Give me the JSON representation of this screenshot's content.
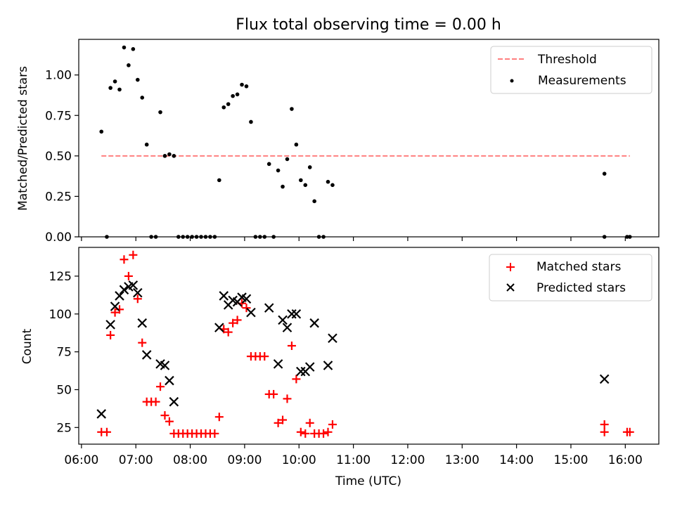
{
  "title": "Flux total observing time = 0.00 h",
  "chart_data": [
    {
      "type": "scatter",
      "ylabel": "Matched/Predicted stars",
      "ylim": [
        0,
        1.22
      ],
      "yticks": [
        0.0,
        0.25,
        0.5,
        0.75,
        1.0
      ],
      "ytick_labels": [
        "0.00",
        "0.25",
        "0.50",
        "0.75",
        "1.00"
      ],
      "legend": {
        "position": "top-right",
        "entries": [
          "Threshold",
          "Measurements"
        ]
      },
      "colors": {
        "threshold": "#ff7f7f",
        "measurements": "#000000"
      },
      "threshold": {
        "name": "Threshold",
        "y": 0.5,
        "x_start": "06:22",
        "x_end": "16:05"
      },
      "series": [
        {
          "name": "Measurements",
          "points": [
            [
              "06:22",
              0.65
            ],
            [
              "06:28",
              0.0
            ],
            [
              "06:32",
              0.92
            ],
            [
              "06:37",
              0.96
            ],
            [
              "06:42",
              0.91
            ],
            [
              "06:47",
              1.17
            ],
            [
              "06:52",
              1.06
            ],
            [
              "06:57",
              1.16
            ],
            [
              "07:02",
              0.97
            ],
            [
              "07:07",
              0.86
            ],
            [
              "07:12",
              0.57
            ],
            [
              "07:17",
              0.0
            ],
            [
              "07:22",
              0.0
            ],
            [
              "07:27",
              0.77
            ],
            [
              "07:32",
              0.5
            ],
            [
              "07:37",
              0.51
            ],
            [
              "07:42",
              0.5
            ],
            [
              "07:47",
              0.0
            ],
            [
              "07:52",
              0.0
            ],
            [
              "07:57",
              0.0
            ],
            [
              "08:02",
              0.0
            ],
            [
              "08:07",
              0.0
            ],
            [
              "08:12",
              0.0
            ],
            [
              "08:17",
              0.0
            ],
            [
              "08:22",
              0.0
            ],
            [
              "08:27",
              0.0
            ],
            [
              "08:32",
              0.35
            ],
            [
              "08:37",
              0.8
            ],
            [
              "08:42",
              0.82
            ],
            [
              "08:47",
              0.87
            ],
            [
              "08:52",
              0.88
            ],
            [
              "08:57",
              0.94
            ],
            [
              "09:02",
              0.93
            ],
            [
              "09:07",
              0.71
            ],
            [
              "09:12",
              0.0
            ],
            [
              "09:17",
              0.0
            ],
            [
              "09:22",
              0.0
            ],
            [
              "09:27",
              0.45
            ],
            [
              "09:32",
              0.0
            ],
            [
              "09:37",
              0.41
            ],
            [
              "09:42",
              0.31
            ],
            [
              "09:47",
              0.48
            ],
            [
              "09:52",
              0.79
            ],
            [
              "09:57",
              0.57
            ],
            [
              "10:02",
              0.35
            ],
            [
              "10:07",
              0.32
            ],
            [
              "10:12",
              0.43
            ],
            [
              "10:17",
              0.22
            ],
            [
              "10:22",
              0.0
            ],
            [
              "10:27",
              0.0
            ],
            [
              "10:32",
              0.34
            ],
            [
              "10:37",
              0.32
            ],
            [
              "15:37",
              0.0
            ],
            [
              "15:37",
              0.39
            ],
            [
              "16:02",
              0.0
            ],
            [
              "16:05",
              0.0
            ]
          ]
        }
      ]
    },
    {
      "type": "scatter",
      "xlabel": "Time (UTC)",
      "ylabel": "Count",
      "ylim": [
        14,
        144
      ],
      "yticks": [
        25,
        50,
        75,
        100,
        125
      ],
      "xlim": [
        "05:57",
        "16:37"
      ],
      "xticks": [
        "06:00",
        "07:00",
        "08:00",
        "09:00",
        "10:00",
        "11:00",
        "12:00",
        "13:00",
        "14:00",
        "15:00",
        "16:00"
      ],
      "legend": {
        "position": "top-right",
        "entries": [
          "Matched stars",
          "Predicted stars"
        ]
      },
      "colors": {
        "matched": "#ff0000",
        "predicted": "#000000"
      },
      "series": [
        {
          "name": "Matched stars",
          "marker": "plus",
          "points": [
            [
              "06:22",
              22
            ],
            [
              "06:28",
              22
            ],
            [
              "06:32",
              86
            ],
            [
              "06:37",
              101
            ],
            [
              "06:42",
              103
            ],
            [
              "06:47",
              136
            ],
            [
              "06:52",
              125
            ],
            [
              "06:57",
              139
            ],
            [
              "07:02",
              110
            ],
            [
              "07:07",
              81
            ],
            [
              "07:12",
              42
            ],
            [
              "07:17",
              42
            ],
            [
              "07:22",
              42
            ],
            [
              "07:27",
              52
            ],
            [
              "07:32",
              33
            ],
            [
              "07:37",
              29
            ],
            [
              "07:42",
              21
            ],
            [
              "07:47",
              21
            ],
            [
              "07:52",
              21
            ],
            [
              "07:57",
              21
            ],
            [
              "08:02",
              21
            ],
            [
              "08:07",
              21
            ],
            [
              "08:12",
              21
            ],
            [
              "08:17",
              21
            ],
            [
              "08:22",
              21
            ],
            [
              "08:27",
              21
            ],
            [
              "08:32",
              32
            ],
            [
              "08:37",
              90
            ],
            [
              "08:42",
              88
            ],
            [
              "08:47",
              94
            ],
            [
              "08:52",
              96
            ],
            [
              "08:57",
              107
            ],
            [
              "09:02",
              104
            ],
            [
              "09:07",
              72
            ],
            [
              "09:12",
              72
            ],
            [
              "09:17",
              72
            ],
            [
              "09:22",
              72
            ],
            [
              "09:27",
              47
            ],
            [
              "09:32",
              47
            ],
            [
              "09:37",
              28
            ],
            [
              "09:42",
              30
            ],
            [
              "09:47",
              44
            ],
            [
              "09:52",
              79
            ],
            [
              "09:57",
              57
            ],
            [
              "10:02",
              22
            ],
            [
              "10:07",
              21
            ],
            [
              "10:12",
              28
            ],
            [
              "10:17",
              21
            ],
            [
              "10:22",
              21
            ],
            [
              "10:27",
              21
            ],
            [
              "10:32",
              22
            ],
            [
              "10:37",
              27
            ],
            [
              "15:37",
              27
            ],
            [
              "15:37",
              22
            ],
            [
              "16:02",
              22
            ],
            [
              "16:05",
              22
            ]
          ]
        },
        {
          "name": "Predicted stars",
          "marker": "x",
          "points": [
            [
              "06:22",
              34
            ],
            [
              "06:32",
              93
            ],
            [
              "06:37",
              105
            ],
            [
              "06:42",
              112
            ],
            [
              "06:47",
              116
            ],
            [
              "06:52",
              118
            ],
            [
              "06:57",
              119
            ],
            [
              "07:02",
              114
            ],
            [
              "07:07",
              94
            ],
            [
              "07:12",
              73
            ],
            [
              "07:27",
              67
            ],
            [
              "07:32",
              66
            ],
            [
              "07:37",
              56
            ],
            [
              "07:42",
              42
            ],
            [
              "08:32",
              91
            ],
            [
              "08:37",
              112
            ],
            [
              "08:42",
              106
            ],
            [
              "08:47",
              109
            ],
            [
              "08:52",
              108
            ],
            [
              "08:57",
              111
            ],
            [
              "09:02",
              110
            ],
            [
              "09:07",
              101
            ],
            [
              "09:27",
              104
            ],
            [
              "09:37",
              67
            ],
            [
              "09:42",
              96
            ],
            [
              "09:47",
              91
            ],
            [
              "09:52",
              100
            ],
            [
              "09:57",
              100
            ],
            [
              "10:02",
              62
            ],
            [
              "10:07",
              62
            ],
            [
              "10:12",
              65
            ],
            [
              "10:17",
              94
            ],
            [
              "10:32",
              66
            ],
            [
              "10:37",
              84
            ],
            [
              "15:37",
              57
            ]
          ]
        }
      ]
    }
  ]
}
